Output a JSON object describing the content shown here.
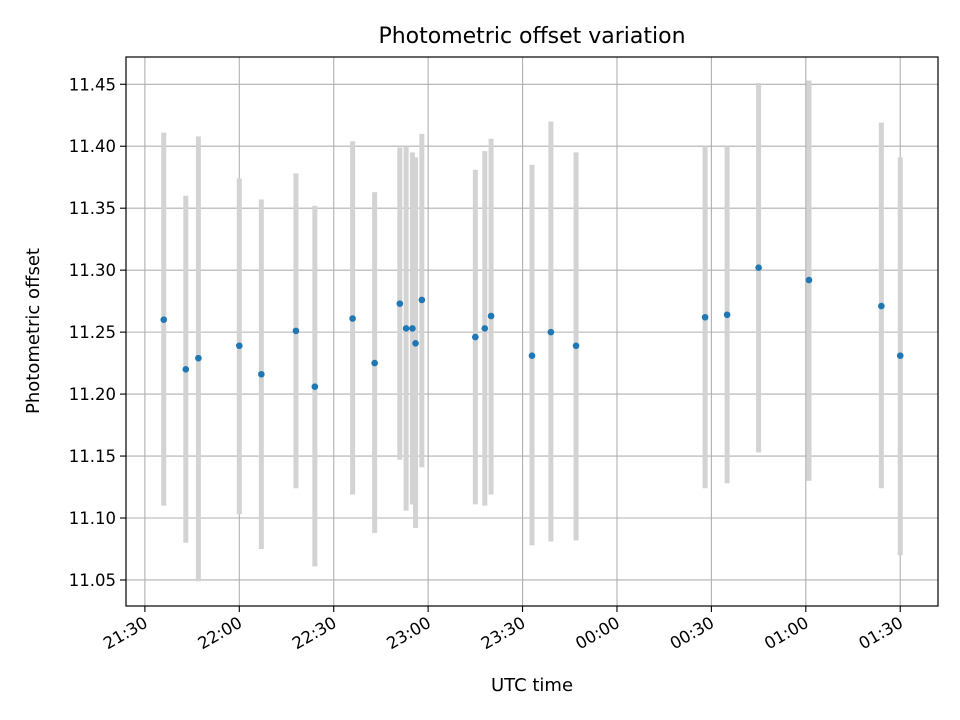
{
  "chart_data": {
    "type": "scatter",
    "title": "Photometric offset variation",
    "xlabel": "UTC time",
    "ylabel": "Photometric offset",
    "grid": true,
    "x_axis": {
      "kind": "time",
      "range": [
        "21:24",
        "01:42"
      ],
      "ticks": [
        "21:30",
        "22:00",
        "22:30",
        "23:00",
        "23:30",
        "00:00",
        "00:30",
        "01:00",
        "01:30"
      ]
    },
    "y_axis": {
      "range": [
        11.029,
        11.472
      ],
      "ticks": [
        "11.05",
        "11.10",
        "11.15",
        "11.20",
        "11.25",
        "11.30",
        "11.35",
        "11.40",
        "11.45"
      ]
    },
    "colors": {
      "point": "#1f77b4",
      "errorbar": "#d3d3d3",
      "grid": "#b0b0b0"
    },
    "points": [
      {
        "x": "21:36",
        "y": 11.26,
        "ylo": 11.11,
        "yhi": 11.411
      },
      {
        "x": "21:43",
        "y": 11.22,
        "ylo": 11.08,
        "yhi": 11.36
      },
      {
        "x": "21:47",
        "y": 11.229,
        "ylo": 11.049,
        "yhi": 11.408
      },
      {
        "x": "22:00",
        "y": 11.239,
        "ylo": 11.103,
        "yhi": 11.374
      },
      {
        "x": "22:07",
        "y": 11.216,
        "ylo": 11.075,
        "yhi": 11.357
      },
      {
        "x": "22:18",
        "y": 11.251,
        "ylo": 11.124,
        "yhi": 11.378
      },
      {
        "x": "22:24",
        "y": 11.206,
        "ylo": 11.061,
        "yhi": 11.352
      },
      {
        "x": "22:36",
        "y": 11.261,
        "ylo": 11.119,
        "yhi": 11.404
      },
      {
        "x": "22:43",
        "y": 11.225,
        "ylo": 11.088,
        "yhi": 11.363
      },
      {
        "x": "22:51",
        "y": 11.273,
        "ylo": 11.147,
        "yhi": 11.399
      },
      {
        "x": "22:53",
        "y": 11.253,
        "ylo": 11.106,
        "yhi": 11.4
      },
      {
        "x": "22:55",
        "y": 11.253,
        "ylo": 11.111,
        "yhi": 11.395
      },
      {
        "x": "22:56",
        "y": 11.241,
        "ylo": 11.092,
        "yhi": 11.391
      },
      {
        "x": "22:58",
        "y": 11.276,
        "ylo": 11.141,
        "yhi": 11.41
      },
      {
        "x": "23:15",
        "y": 11.246,
        "ylo": 11.111,
        "yhi": 11.381
      },
      {
        "x": "23:18",
        "y": 11.253,
        "ylo": 11.11,
        "yhi": 11.396
      },
      {
        "x": "23:20",
        "y": 11.263,
        "ylo": 11.119,
        "yhi": 11.406
      },
      {
        "x": "23:33",
        "y": 11.231,
        "ylo": 11.078,
        "yhi": 11.385
      },
      {
        "x": "23:39",
        "y": 11.25,
        "ylo": 11.081,
        "yhi": 11.42
      },
      {
        "x": "23:47",
        "y": 11.239,
        "ylo": 11.082,
        "yhi": 11.395
      },
      {
        "x": "00:28",
        "y": 11.262,
        "ylo": 11.124,
        "yhi": 11.4
      },
      {
        "x": "00:35",
        "y": 11.264,
        "ylo": 11.128,
        "yhi": 11.4
      },
      {
        "x": "00:45",
        "y": 11.302,
        "ylo": 11.153,
        "yhi": 11.451
      },
      {
        "x": "01:01",
        "y": 11.292,
        "ylo": 11.13,
        "yhi": 11.453
      },
      {
        "x": "01:24",
        "y": 11.271,
        "ylo": 11.124,
        "yhi": 11.419
      },
      {
        "x": "01:30",
        "y": 11.231,
        "ylo": 11.07,
        "yhi": 11.391
      }
    ]
  }
}
